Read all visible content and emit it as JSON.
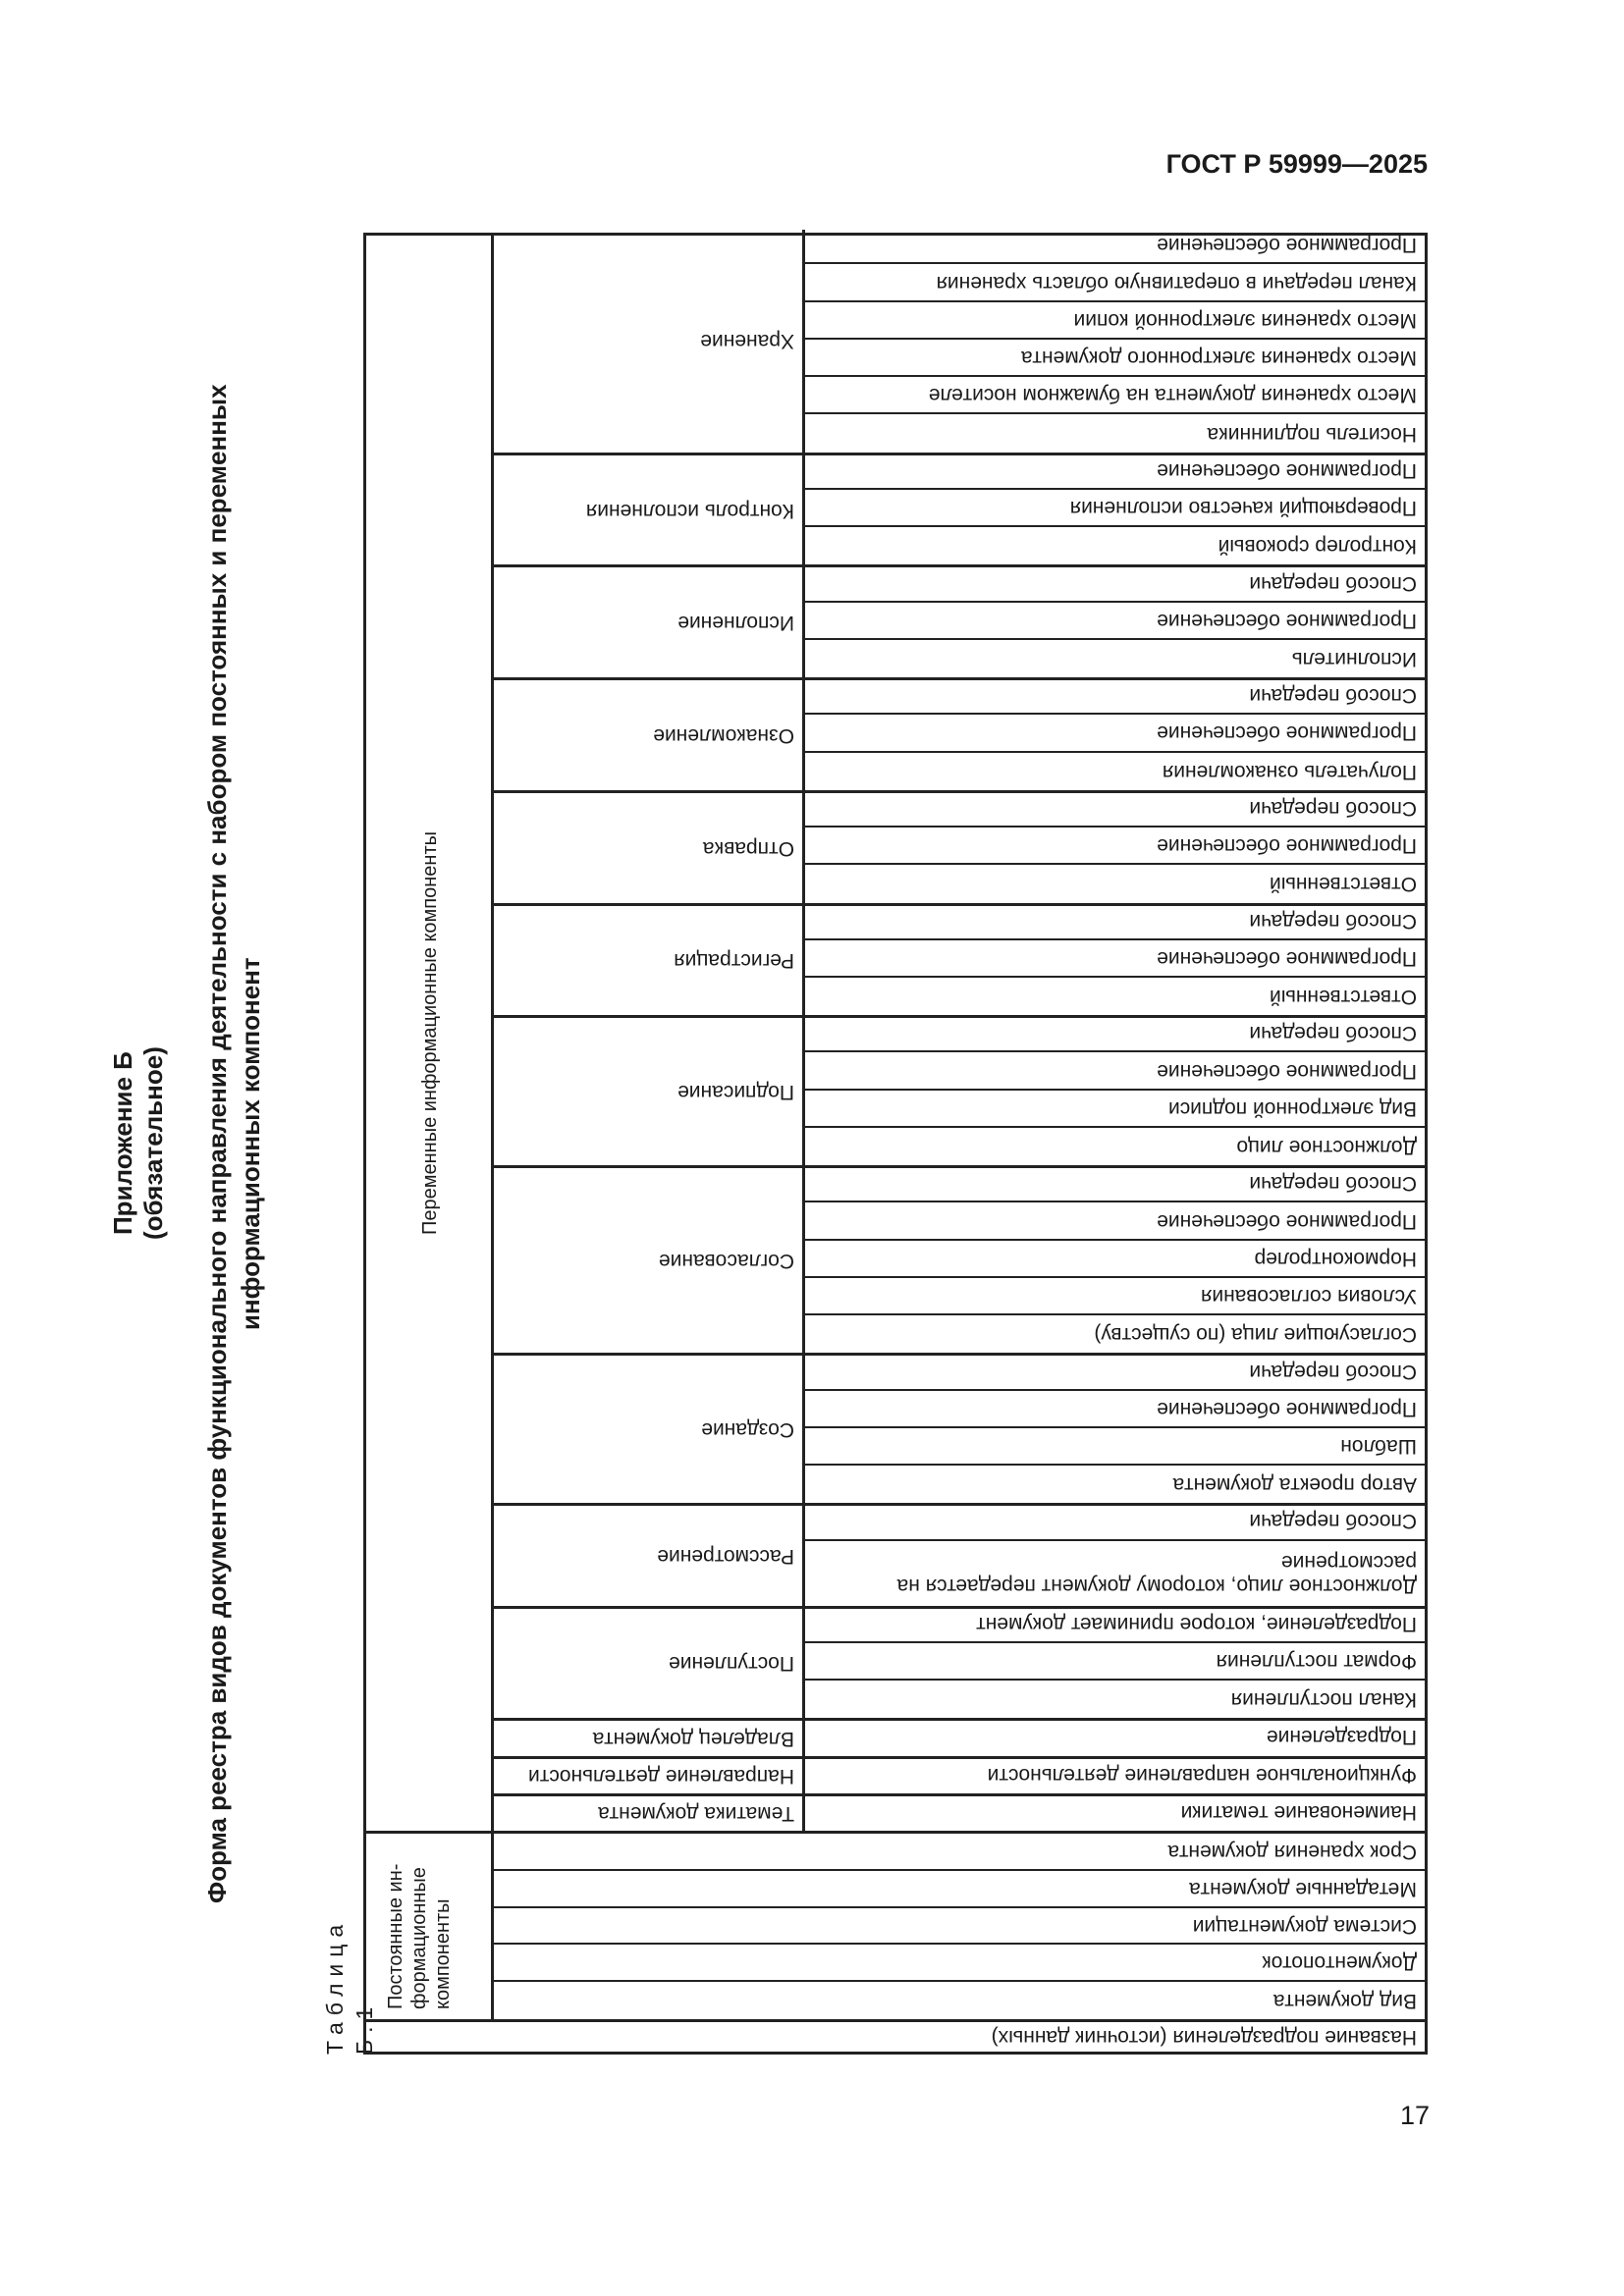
{
  "header": {
    "standard": "ГОСТ Р 59999—2025"
  },
  "page_number": "17",
  "appendix": {
    "title": "Приложение Б",
    "status": "(обязательное)"
  },
  "table": {
    "caption": "Таблица Б.1",
    "title_lines": [
      "Форма реестра видов документов функционального направления деятельности с набором постоянных и переменных",
      "информационных компонент"
    ],
    "source_row": "Название подразделения (источник данных)",
    "constant_label": "Постоянные ин-\nформационные\nкомпоненты",
    "constant_rows": [
      "Вид документа",
      "Документопоток",
      "Система документации",
      "Метаданные документа",
      "Срок хранения документа"
    ],
    "variable_label": "Переменные информационные компоненты",
    "groups": [
      {
        "name": "Тематика документа",
        "items": [
          "Наименование тематики"
        ]
      },
      {
        "name": "Направление деятельности",
        "items": [
          "Функциональное направление деятельности"
        ]
      },
      {
        "name": "Владелец документа",
        "items": [
          "Подразделение"
        ]
      },
      {
        "name": "Поступление",
        "items": [
          "Канал поступления",
          "Формат поступления",
          "Подразделение, которое принимает документ"
        ]
      },
      {
        "name": "Рассмотрение",
        "items": [
          "Должностное лицо, которому документ передается на\nрассмотрение",
          "Способ передачи"
        ]
      },
      {
        "name": "Создание",
        "items": [
          "Автор проекта документа",
          "Шаблон",
          "Программное обеспечение",
          "Способ передачи"
        ]
      },
      {
        "name": "Согласование",
        "items": [
          "Согласующие лица (по существу)",
          "Условия согласования",
          "Нормоконтролер",
          "Программное обеспечение",
          "Способ передачи"
        ]
      },
      {
        "name": "Подписание",
        "items": [
          "Должностное лицо",
          "Вид электронной подписи",
          "Программное обеспечение",
          "Способ передачи"
        ]
      },
      {
        "name": "Регистрация",
        "items": [
          "Ответственный",
          "Программное обеспечение",
          "Способ передачи"
        ]
      },
      {
        "name": "Отправка",
        "items": [
          "Ответственный",
          "Программное обеспечение",
          "Способ передачи"
        ]
      },
      {
        "name": "Ознакомление",
        "items": [
          "Получатель ознакомления",
          "Программное обеспечение",
          "Способ передачи"
        ]
      },
      {
        "name": "Исполнение",
        "items": [
          "Исполнитель",
          "Программное обеспечение",
          "Способ передачи"
        ]
      },
      {
        "name": "Контроль исполнения",
        "items": [
          "Контролер сроковый",
          "Проверяющий качество исполнения",
          "Программное обеспечение"
        ]
      },
      {
        "name": "Хранение",
        "items": [
          "Носитель подлинника",
          "Место хранения документа на бумажном носителе",
          "Место хранения электронного документа",
          "Место хранения электронной копии",
          "Канал передачи в оперативную область хранения",
          "Программное обеспечение"
        ]
      }
    ]
  }
}
